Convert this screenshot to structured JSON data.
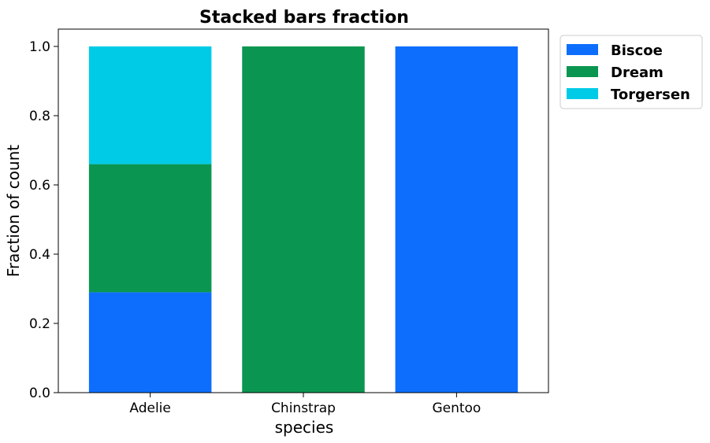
{
  "chart_data": {
    "type": "bar",
    "stacked": true,
    "title": "Stacked bars fraction",
    "xlabel": "species",
    "ylabel": "Fraction of count",
    "categories": [
      "Adelie",
      "Chinstrap",
      "Gentoo"
    ],
    "series": [
      {
        "name": "Biscoe",
        "color": "#0D6EFD",
        "values": [
          0.29,
          0.0,
          1.0
        ]
      },
      {
        "name": "Dream",
        "color": "#0A9650",
        "values": [
          0.37,
          1.0,
          0.0
        ]
      },
      {
        "name": "Torgersen",
        "color": "#00CBE6",
        "values": [
          0.34,
          0.0,
          0.0
        ]
      }
    ],
    "ylim": [
      0,
      1.05
    ],
    "yticks": [
      "0.0",
      "0.2",
      "0.4",
      "0.6",
      "0.8",
      "1.0"
    ],
    "grid": false,
    "legend": "outside-top-right"
  }
}
